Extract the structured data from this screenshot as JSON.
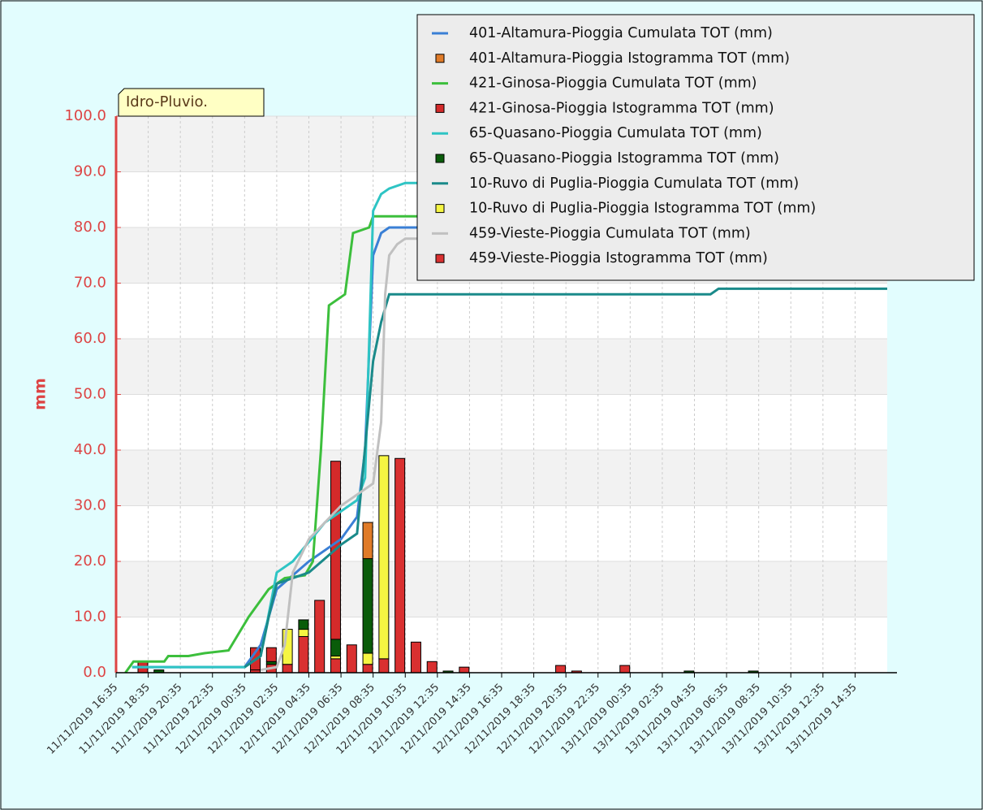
{
  "chart_data": {
    "type": "bar_line",
    "badge": "Idro-Pluvio.",
    "ylabel": "mm",
    "ylim": [
      0,
      100
    ],
    "yticks": [
      {
        "value": 0,
        "label": "0.0"
      },
      {
        "value": 10,
        "label": "10.0"
      },
      {
        "value": 20,
        "label": "20.0"
      },
      {
        "value": 30,
        "label": "30.0"
      },
      {
        "value": 40,
        "label": "40.0"
      },
      {
        "value": 50,
        "label": "50.0"
      },
      {
        "value": 60,
        "label": "60.0"
      },
      {
        "value": 70,
        "label": "70.0"
      },
      {
        "value": 80,
        "label": "80.0"
      },
      {
        "value": 90,
        "label": "90.0"
      },
      {
        "value": 100,
        "label": "100.0"
      }
    ],
    "xlim": [
      "11/11/2019 16:35",
      "13/11/2019 16:35"
    ],
    "xticks": [
      "11/11/2019 16:35",
      "11/11/2019 18:35",
      "11/11/2019 20:35",
      "11/11/2019 22:35",
      "12/11/2019 00:35",
      "12/11/2019 02:35",
      "12/11/2019 04:35",
      "12/11/2019 06:35",
      "12/11/2019 08:35",
      "12/11/2019 10:35",
      "12/11/2019 12:35",
      "12/11/2019 14:35",
      "12/11/2019 16:35",
      "12/11/2019 18:35",
      "12/11/2019 20:35",
      "12/11/2019 22:35",
      "13/11/2019 00:35",
      "13/11/2019 02:35",
      "13/11/2019 04:35",
      "13/11/2019 06:35",
      "13/11/2019 08:35",
      "13/11/2019 10:35",
      "13/11/2019 12:35",
      "13/11/2019 14:35"
    ],
    "grid": true,
    "x": [
      "11/11/2019 18:15",
      "11/11/2019 19:15",
      "12/11/2019 01:15",
      "12/11/2019 02:15",
      "12/11/2019 03:15",
      "12/11/2019 04:15",
      "12/11/2019 05:15",
      "12/11/2019 06:15",
      "12/11/2019 07:15",
      "12/11/2019 08:15",
      "12/11/2019 09:15",
      "12/11/2019 10:15",
      "12/11/2019 11:15",
      "12/11/2019 12:15",
      "12/11/2019 13:15",
      "12/11/2019 14:15",
      "12/11/2019 20:15",
      "12/11/2019 21:15",
      "13/11/2019 00:15",
      "13/11/2019 04:15",
      "13/11/2019 08:15"
    ],
    "stack_order": [
      9,
      7,
      5,
      1,
      3
    ],
    "series": [
      {
        "name": "401-Altamura-Pioggia Cumulata TOT (mm)",
        "kind": "line",
        "color": "#3a7fd5",
        "x": [
          "11/11/2019 17:35",
          "12/11/2019 00:35",
          "12/11/2019 01:35",
          "12/11/2019 02:35",
          "12/11/2019 04:35",
          "12/11/2019 06:35",
          "12/11/2019 07:35",
          "12/11/2019 08:05",
          "12/11/2019 08:35",
          "12/11/2019 09:05",
          "12/11/2019 09:35",
          "13/11/2019 16:35"
        ],
        "values": [
          1,
          1,
          5,
          15,
          20,
          24,
          28,
          40,
          75,
          79,
          80,
          80
        ]
      },
      {
        "name": "401-Altamura-Pioggia Istogramma TOT (mm)",
        "kind": "bar",
        "color": "#e07b28",
        "values": [
          0,
          0,
          0,
          0,
          0,
          0,
          0,
          0,
          0,
          6.5,
          0,
          0,
          0,
          0,
          0,
          0,
          0,
          0,
          0,
          0,
          0
        ]
      },
      {
        "name": "421-Ginosa-Pioggia Cumulata TOT (mm)",
        "kind": "line",
        "color": "#3cbf3c",
        "x": [
          "11/11/2019 17:10",
          "11/11/2019 17:40",
          "11/11/2019 19:35",
          "11/11/2019 19:50",
          "11/11/2019 21:05",
          "11/11/2019 22:05",
          "11/11/2019 23:35",
          "12/11/2019 00:50",
          "12/11/2019 02:05",
          "12/11/2019 03:05",
          "12/11/2019 04:20",
          "12/11/2019 04:50",
          "12/11/2019 05:20",
          "12/11/2019 05:50",
          "12/11/2019 06:50",
          "12/11/2019 07:20",
          "12/11/2019 08:20",
          "12/11/2019 08:35",
          "13/11/2019 16:35"
        ],
        "values": [
          0,
          2,
          2,
          3,
          3,
          3.5,
          4,
          10,
          15,
          17,
          17.5,
          20,
          40,
          66,
          68,
          79,
          80,
          82,
          82
        ]
      },
      {
        "name": "421-Ginosa-Pioggia Istogramma TOT (mm)",
        "kind": "bar",
        "color": "#d42a2a",
        "values": [
          2,
          0,
          4,
          2.5,
          0,
          0,
          0,
          32,
          0,
          0,
          0,
          0,
          0,
          0,
          0,
          0,
          0,
          0,
          0,
          0,
          0
        ]
      },
      {
        "name": "65-Quasano-Pioggia Cumulata TOT (mm)",
        "kind": "line",
        "color": "#2ec4c4",
        "x": [
          "11/11/2019 17:35",
          "12/11/2019 00:35",
          "12/11/2019 01:35",
          "12/11/2019 02:35",
          "12/11/2019 03:35",
          "12/11/2019 05:35",
          "12/11/2019 07:35",
          "12/11/2019 08:05",
          "12/11/2019 08:35",
          "12/11/2019 09:05",
          "12/11/2019 09:35",
          "12/11/2019 10:35",
          "13/11/2019 16:35"
        ],
        "values": [
          1,
          1,
          3,
          18,
          20,
          27,
          31,
          35,
          83,
          86,
          87,
          88,
          88
        ]
      },
      {
        "name": "65-Quasano-Pioggia Istogramma TOT (mm)",
        "kind": "bar",
        "color": "#0a5c0a",
        "values": [
          0,
          0.5,
          0,
          0.5,
          0,
          1.7,
          0,
          3,
          0,
          17,
          0,
          0,
          0,
          0,
          0.3,
          0,
          0,
          0,
          0,
          0.3,
          0.3
        ]
      },
      {
        "name": "10-Ruvo di Puglia-Pioggia Cumulata TOT (mm)",
        "kind": "line",
        "color": "#1a8a8a",
        "x": [
          "12/11/2019 00:35",
          "12/11/2019 01:35",
          "12/11/2019 02:05",
          "12/11/2019 02:35",
          "12/11/2019 04:35",
          "12/11/2019 06:35",
          "12/11/2019 07:35",
          "12/11/2019 08:35",
          "12/11/2019 09:05",
          "12/11/2019 09:35",
          "13/11/2019 05:35",
          "13/11/2019 06:05",
          "13/11/2019 16:35"
        ],
        "values": [
          1,
          3,
          10,
          16,
          18,
          23,
          25,
          56,
          63,
          68,
          68,
          69,
          69
        ]
      },
      {
        "name": "10-Ruvo di Puglia-Pioggia Istogramma TOT (mm)",
        "kind": "bar",
        "color": "#f5f542",
        "values": [
          0,
          0,
          0,
          0,
          6.3,
          1.3,
          0,
          0.5,
          0,
          2,
          36.5,
          0,
          0,
          0,
          0,
          0,
          0,
          0,
          0,
          0,
          0
        ]
      },
      {
        "name": "459-Vieste-Pioggia Cumulata TOT (mm)",
        "kind": "line",
        "color": "#c0c0c0",
        "x": [
          "12/11/2019 01:35",
          "12/11/2019 02:35",
          "12/11/2019 03:05",
          "12/11/2019 03:35",
          "12/11/2019 04:35",
          "12/11/2019 06:35",
          "12/11/2019 07:35",
          "12/11/2019 08:35",
          "12/11/2019 09:05",
          "12/11/2019 09:20",
          "12/11/2019 09:35",
          "12/11/2019 10:05",
          "12/11/2019 10:35",
          "13/11/2019 16:35"
        ],
        "values": [
          0.5,
          1,
          5,
          18,
          24,
          30,
          32,
          34,
          45,
          68,
          75,
          77,
          78,
          78
        ]
      },
      {
        "name": "459-Vieste-Pioggia Istogramma TOT (mm)",
        "kind": "bar",
        "color": "#d93030",
        "values": [
          0,
          0,
          0.5,
          1.5,
          1.5,
          6.5,
          13,
          2.5,
          5,
          1.5,
          2.5,
          38.5,
          5.5,
          2,
          0,
          1,
          1.3,
          0.3,
          1.3,
          0,
          0
        ]
      }
    ]
  }
}
